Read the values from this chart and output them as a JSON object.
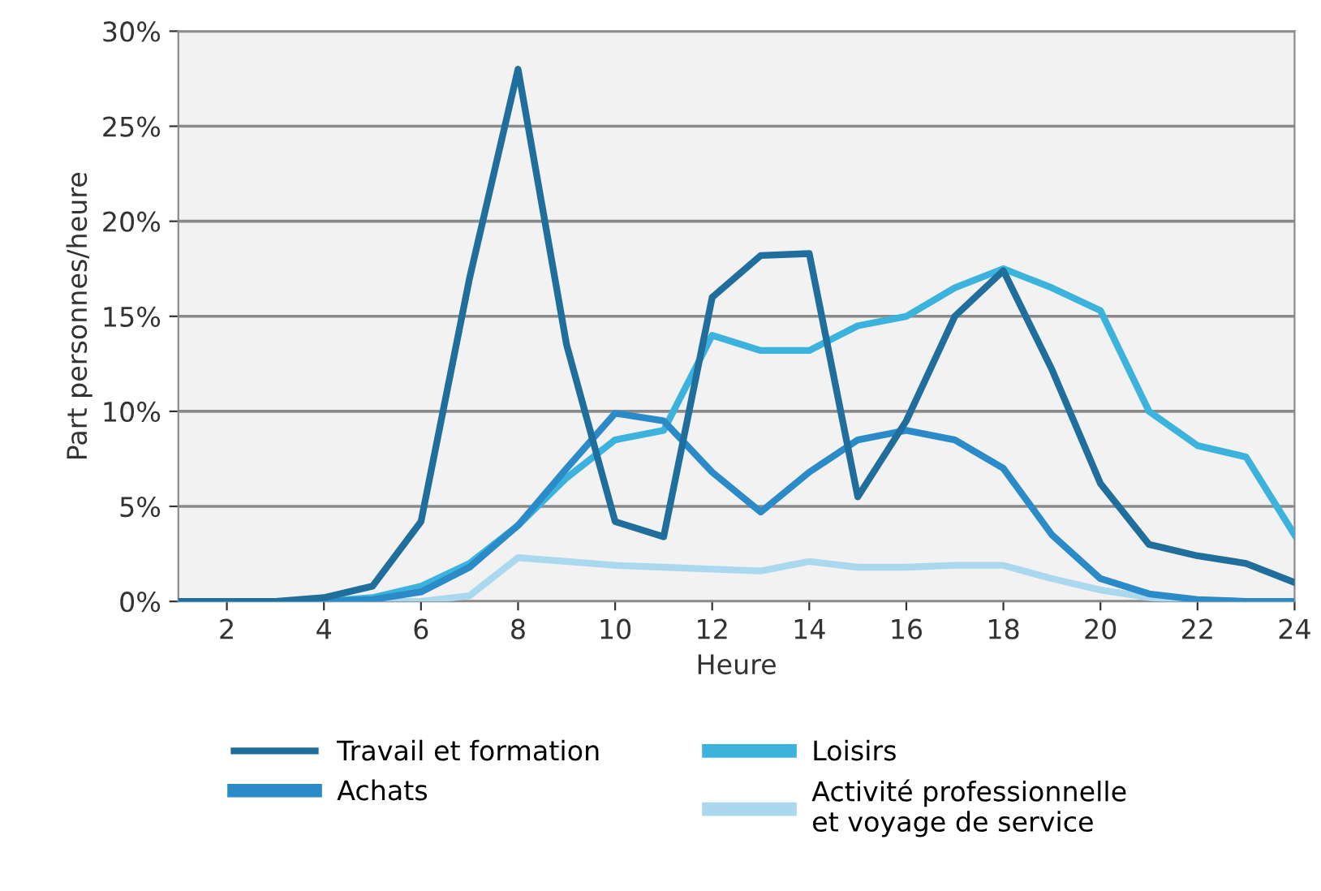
{
  "chart_data": {
    "type": "line",
    "xlabel": "Heure",
    "ylabel": "Part personnes/heure",
    "x": [
      1,
      2,
      3,
      4,
      5,
      6,
      7,
      8,
      9,
      10,
      11,
      12,
      13,
      14,
      15,
      16,
      17,
      18,
      19,
      20,
      21,
      22,
      23,
      24
    ],
    "series": [
      {
        "name": "Travail et formation",
        "color": "#1f6e9c",
        "values": [
          0,
          0,
          0,
          0.2,
          0.8,
          4.2,
          17,
          28,
          13.5,
          4.2,
          3.4,
          16,
          18.2,
          18.3,
          5.5,
          9.5,
          15,
          17.4,
          12.2,
          6.2,
          3,
          2.4,
          2,
          1
        ]
      },
      {
        "name": "Achats",
        "color": "#2a8bc8",
        "values": [
          0,
          0,
          0,
          0,
          0.1,
          0.5,
          1.8,
          4,
          7,
          9.9,
          9.5,
          6.8,
          4.7,
          6.8,
          8.5,
          9,
          8.5,
          7,
          3.5,
          1.2,
          0.4,
          0.1,
          0,
          0
        ]
      },
      {
        "name": "Loisirs",
        "color": "#3bb3dc",
        "values": [
          0,
          0,
          0,
          0,
          0.2,
          0.8,
          2,
          4,
          6.5,
          8.5,
          9,
          14,
          13.2,
          13.2,
          14.5,
          15,
          16.5,
          17.5,
          16.5,
          15.3,
          10,
          8.2,
          7.6,
          3.5
        ]
      },
      {
        "name": "Activité professionnelle\net voyage de service",
        "color": "#aad8ee",
        "values": [
          0,
          0,
          0,
          0,
          0,
          0,
          0.3,
          2.3,
          2.1,
          1.9,
          1.8,
          1.7,
          1.6,
          2.1,
          1.8,
          1.8,
          1.9,
          1.9,
          1.2,
          0.6,
          0.2,
          0,
          0,
          0
        ]
      }
    ],
    "xlim": [
      1,
      24
    ],
    "xticks": [
      2,
      4,
      6,
      8,
      10,
      12,
      14,
      16,
      18,
      20,
      22,
      24
    ],
    "ylim": [
      0,
      30
    ],
    "yticks": [
      {
        "value": 0,
        "label": "0%"
      },
      {
        "value": 5,
        "label": "5%"
      },
      {
        "value": 10,
        "label": "10%"
      },
      {
        "value": 15,
        "label": "15%"
      },
      {
        "value": 20,
        "label": "20%"
      },
      {
        "value": 25,
        "label": "25%"
      },
      {
        "value": 30,
        "label": "30%"
      }
    ],
    "grid": "y",
    "legend": "bottom",
    "marker": "none",
    "line_style": "solid"
  }
}
